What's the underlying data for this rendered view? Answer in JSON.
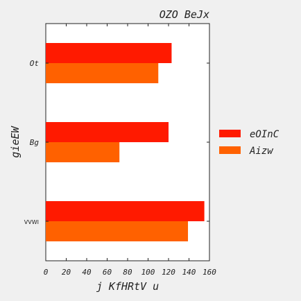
{
  "chart_data": {
    "type": "bar",
    "orientation": "horizontal",
    "title": "OZO BeJx",
    "xlabel": "j KfHRtV u",
    "ylabel": "gieEW",
    "categories": [
      "VVWI",
      "Bg",
      "Ot"
    ],
    "series": [
      {
        "name": "eOInC",
        "values": [
          155,
          120,
          123
        ],
        "color": "#ff1a00"
      },
      {
        "name": "Aizw",
        "values": [
          139,
          72,
          110
        ],
        "color": "#ff6100"
      }
    ],
    "xlim": [
      0,
      160
    ],
    "xticks": [
      "0",
      "20",
      "40",
      "60",
      "80",
      "100",
      "120",
      "140",
      "160"
    ],
    "grid": false,
    "legend": "right"
  }
}
